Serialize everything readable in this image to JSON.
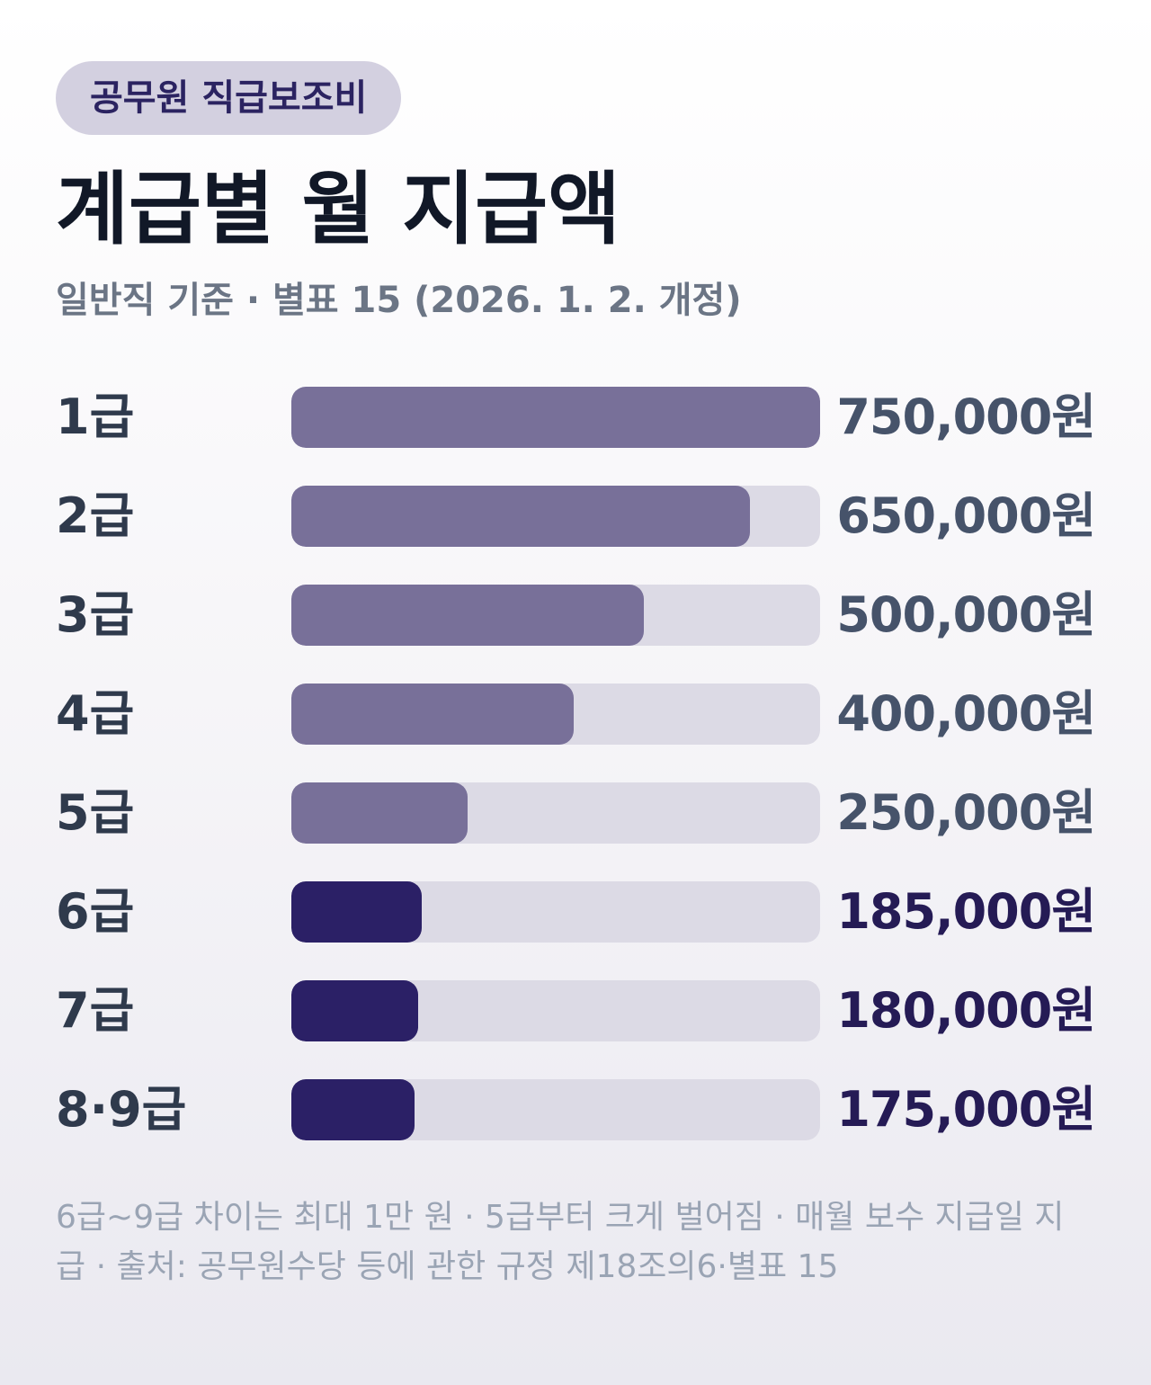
{
  "badge": "공무원 직급보조비",
  "title": "계급별 월 지급액",
  "subtitle": "일반직 기준 · 별표 15 (2026. 1. 2. 개정)",
  "footnote": "6급~9급 차이는 최대 1만 원 · 5급부터 크게 벌어짐 · 매월 보수 지급일 지급 · 출처: 공무원수당 등에 관한 규정 제18조의6·별표 15",
  "colors": {
    "bar_default": "#787099",
    "bar_highlight": "#2b2066",
    "track": "#dcdae5"
  },
  "chart_data": {
    "type": "bar",
    "orientation": "horizontal",
    "categories": [
      "1급",
      "2급",
      "3급",
      "4급",
      "5급",
      "6급",
      "7급",
      "8·9급"
    ],
    "values": [
      750000,
      650000,
      500000,
      400000,
      250000,
      185000,
      180000,
      175000
    ],
    "value_labels": [
      "750,000원",
      "650,000원",
      "500,000원",
      "400,000원",
      "250,000원",
      "185,000원",
      "180,000원",
      "175,000원"
    ],
    "highlighted": [
      false,
      false,
      false,
      false,
      false,
      true,
      true,
      true
    ],
    "xlim": [
      0,
      750000
    ],
    "grid": false,
    "legend": "none"
  }
}
